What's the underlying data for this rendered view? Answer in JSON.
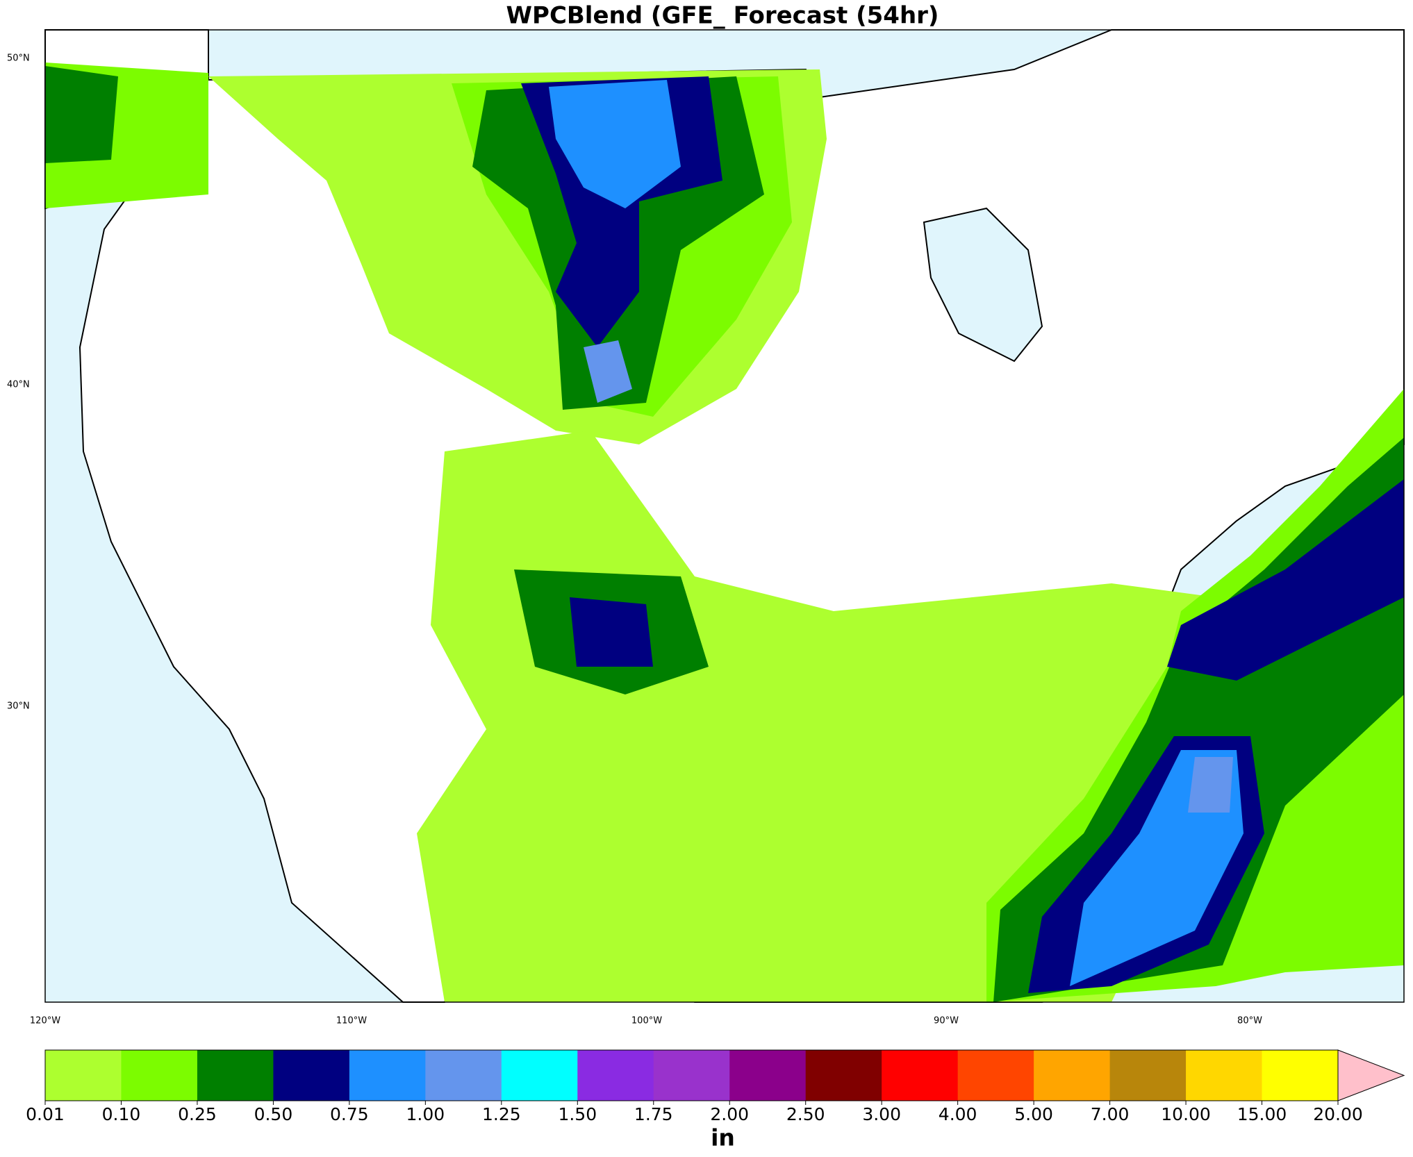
{
  "title": "WPCBlend (GFE_ Forecast (54hr)",
  "lat_labels": [
    "50°N",
    "40°N",
    "30°N"
  ],
  "lon_labels": [
    "120°W",
    "110°W",
    "100°W",
    "90°W",
    "80°W"
  ],
  "colorbar": {
    "ticks": [
      {
        "value": 0.01,
        "label": "0.01"
      },
      {
        "value": 0.1,
        "label": "0.10"
      },
      {
        "value": 0.25,
        "label": "0.25"
      },
      {
        "value": 0.5,
        "label": "0.50"
      },
      {
        "value": 0.75,
        "label": "0.75"
      },
      {
        "value": 1,
        "label": "1.00"
      },
      {
        "value": 1.25,
        "label": "1.25"
      },
      {
        "value": 1.5,
        "label": "1.50"
      },
      {
        "value": 1.75,
        "label": "1.75"
      },
      {
        "value": 2,
        "label": "2.00"
      },
      {
        "value": 2.5,
        "label": "2.50"
      },
      {
        "value": 3,
        "label": "3.00"
      },
      {
        "value": 4,
        "label": "4.00"
      },
      {
        "value": 5,
        "label": "5.00"
      },
      {
        "value": 7,
        "label": "7.00"
      },
      {
        "value": 10,
        "label": "10.00"
      },
      {
        "value": 15,
        "label": "15.00"
      },
      {
        "value": 20,
        "label": "20.00"
      }
    ],
    "colors": [
      "#adff2f",
      "#7cfc00",
      "#007f00",
      "#000080",
      "#1e90ff",
      "#6495ed",
      "#00ffff",
      "#8a2be2",
      "#9932cc",
      "#8b008b",
      "#800000",
      "#ff0000",
      "#ff4500",
      "#ffa500",
      "#b8860b",
      "#ffd700",
      "#ffff00"
    ],
    "extend_color": "#ffc0cb",
    "label": "in"
  }
}
